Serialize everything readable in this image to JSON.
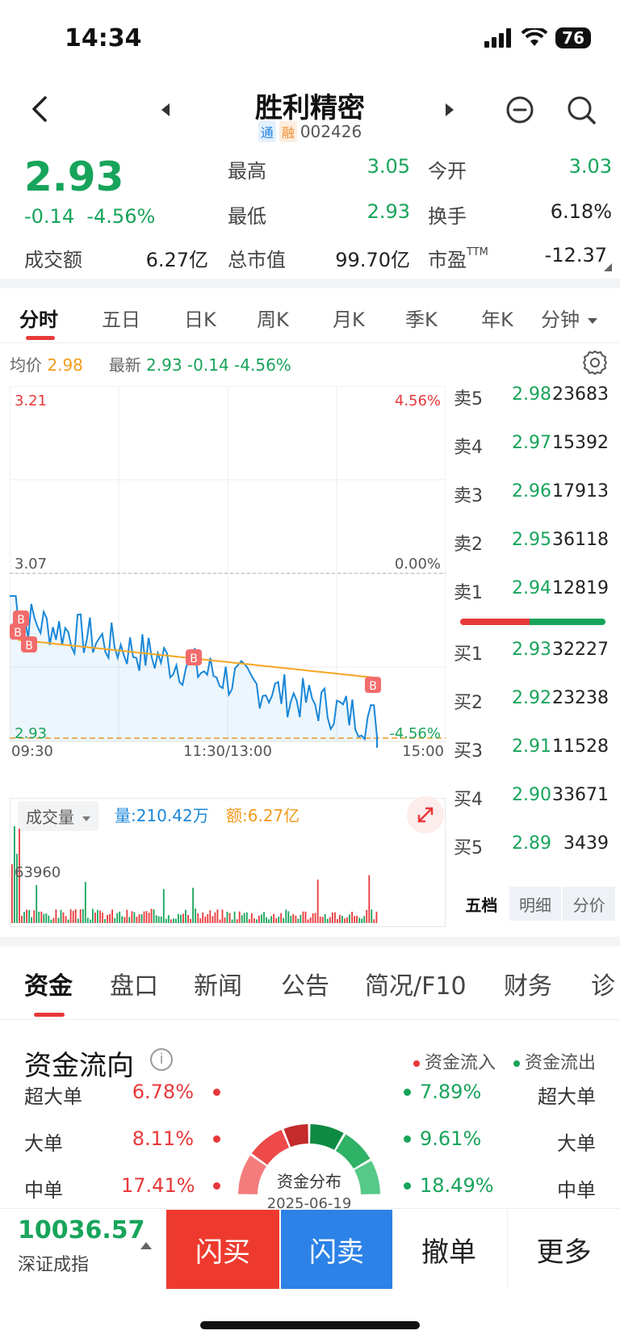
{
  "status": {
    "time": "14:34",
    "battery": "76"
  },
  "header": {
    "name": "胜利精密",
    "tag1": "通",
    "tag2": "融",
    "code": "002426"
  },
  "quote": {
    "price": "2.93",
    "change": "-0.14",
    "change_pct": "-4.56%",
    "high_label": "最高",
    "high": "3.05",
    "open_label": "今开",
    "open": "3.03",
    "low_label": "最低",
    "low": "2.93",
    "turnover_label": "换手",
    "turnover": "6.18%",
    "amount_label": "成交额",
    "amount": "6.27亿",
    "mktcap_label": "总市值",
    "mktcap": "99.70亿",
    "pe_label": "市盈",
    "pe_sup": "TTM",
    "pe": "-12.37"
  },
  "chart_tabs": [
    "分时",
    "五日",
    "日K",
    "周K",
    "月K",
    "季K",
    "年K",
    "分钟"
  ],
  "avg_line": {
    "avg_label": "均价",
    "avg": "2.98",
    "latest_label": "最新",
    "latest": "2.93 -0.14 -4.56%"
  },
  "chart": {
    "top_price": "3.21",
    "top_pct": "4.56%",
    "mid_price": "3.07",
    "mid_pct": "0.00%",
    "bottom_price": "2.93",
    "bottom_pct": "-4.56%",
    "time_start": "09:30",
    "time_mid": "11:30/13:00",
    "time_end": "15:00",
    "marker": "B",
    "colors": {
      "price": "#1a87d9",
      "avg": "#f5a623",
      "up": "#e8383a",
      "down": "#18a45b"
    }
  },
  "volume": {
    "label": "成交量",
    "qty_label": "量:210.42万",
    "amt_label": "额:6.27亿",
    "max": "63960"
  },
  "order_book": {
    "asks": [
      {
        "label": "卖5",
        "price": "2.98",
        "vol": "23683"
      },
      {
        "label": "卖4",
        "price": "2.97",
        "vol": "15392"
      },
      {
        "label": "卖3",
        "price": "2.96",
        "vol": "17913"
      },
      {
        "label": "卖2",
        "price": "2.95",
        "vol": "36118"
      },
      {
        "label": "卖1",
        "price": "2.94",
        "vol": "12819"
      }
    ],
    "bids": [
      {
        "label": "买1",
        "price": "2.93",
        "vol": "32227"
      },
      {
        "label": "买2",
        "price": "2.92",
        "vol": "23238"
      },
      {
        "label": "买3",
        "price": "2.91",
        "vol": "11528"
      },
      {
        "label": "买4",
        "price": "2.90",
        "vol": "33671"
      },
      {
        "label": "买5",
        "price": "2.89",
        "vol": "3439"
      }
    ],
    "tabs": [
      "五档",
      "明细",
      "分价"
    ]
  },
  "bottom_tabs": [
    "资金",
    "盘口",
    "新闻",
    "公告",
    "简况/F10",
    "财务",
    "诊"
  ],
  "flow": {
    "title": "资金流向",
    "in_label": "资金流入",
    "out_label": "资金流出",
    "center_title": "资金分布",
    "center_date": "2025-06-19",
    "rows": [
      {
        "in_label": "超大单",
        "in": "6.78%",
        "out": "7.89%",
        "out_label": "超大单"
      },
      {
        "in_label": "大单",
        "in": "8.11%",
        "out": "9.61%",
        "out_label": "大单"
      },
      {
        "in_label": "中单",
        "in": "17.41%",
        "out": "18.49%",
        "out_label": "中单"
      }
    ]
  },
  "bottom_bar": {
    "index_value": "10036.57",
    "index_name": "深证成指",
    "buy": "闪买",
    "sell": "闪卖",
    "cancel": "撤单",
    "more": "更多"
  }
}
